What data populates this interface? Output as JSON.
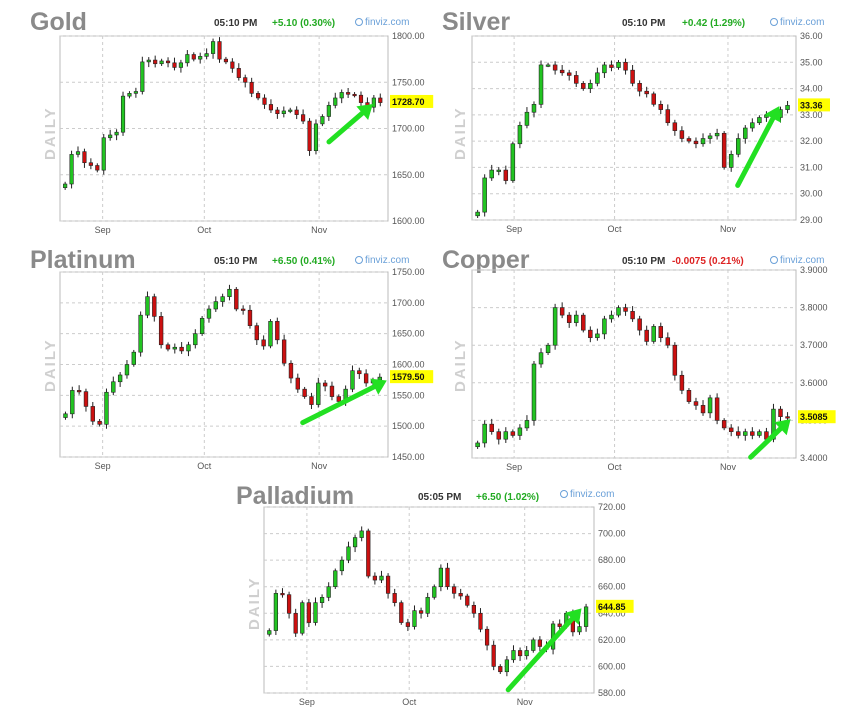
{
  "charts": [
    {
      "id": "gold",
      "name": "Gold",
      "timeframe": "DAILY",
      "time": "05:10 PM",
      "change": "+5.10 (0.30%)",
      "change_color": "#22aa22",
      "brand": "finviz.com",
      "last_price": "1728.70",
      "months": [
        "Sep",
        "Oct",
        "Nov"
      ],
      "yticks": [
        "1800.00",
        "1750.00",
        "1700.00",
        "1650.00",
        "1600.00"
      ],
      "ylim": [
        1600,
        1800
      ],
      "close": [
        1640,
        1672,
        1675,
        1663,
        1660,
        1655,
        1690,
        1693,
        1696,
        1735,
        1738,
        1740,
        1772,
        1774,
        1770,
        1773,
        1771,
        1766,
        1771,
        1780,
        1775,
        1778,
        1781,
        1794,
        1775,
        1772,
        1765,
        1755,
        1750,
        1738,
        1733,
        1726,
        1720,
        1716,
        1719,
        1720,
        1715,
        1708,
        1676,
        1705,
        1713,
        1725,
        1733,
        1739,
        1737,
        1736,
        1728,
        1723,
        1733,
        1728
      ],
      "arrow": [
        0.82,
        0.94
      ]
    },
    {
      "id": "silver",
      "name": "Silver",
      "timeframe": "DAILY",
      "time": "05:10 PM",
      "change": "+0.42 (1.29%)",
      "change_color": "#22aa22",
      "brand": "finviz.com",
      "last_price": "33.36",
      "months": [
        "Sep",
        "Oct",
        "Nov"
      ],
      "yticks": [
        "36.00",
        "35.00",
        "34.00",
        "33.00",
        "32.00",
        "31.00",
        "30.00",
        "29.00"
      ],
      "ylim": [
        29,
        36
      ],
      "close": [
        29.3,
        30.6,
        30.9,
        30.9,
        30.5,
        31.9,
        32.6,
        33.1,
        33.4,
        34.9,
        34.9,
        34.7,
        34.6,
        34.5,
        34.2,
        34.0,
        34.2,
        34.6,
        34.9,
        34.8,
        35.0,
        34.7,
        34.2,
        33.9,
        33.8,
        33.4,
        33.2,
        32.7,
        32.4,
        32.1,
        32.0,
        31.9,
        32.1,
        32.2,
        32.3,
        31.0,
        31.5,
        32.1,
        32.5,
        32.7,
        32.9,
        33.0,
        32.9,
        33.2,
        33.36
      ],
      "arrow": [
        0.82,
        0.94
      ]
    },
    {
      "id": "platinum",
      "name": "Platinum",
      "timeframe": "DAILY",
      "time": "05:10 PM",
      "change": "+6.50 (0.41%)",
      "change_color": "#22aa22",
      "brand": "finviz.com",
      "last_price": "1579.50",
      "months": [
        "Sep",
        "Oct",
        "Nov"
      ],
      "yticks": [
        "1750.00",
        "1700.00",
        "1650.00",
        "1600.00",
        "1550.00",
        "1500.00",
        "1450.00"
      ],
      "ylim": [
        1450,
        1750
      ],
      "close": [
        1520,
        1558,
        1556,
        1532,
        1508,
        1503,
        1555,
        1572,
        1583,
        1600,
        1620,
        1680,
        1710,
        1678,
        1632,
        1625,
        1628,
        1622,
        1632,
        1650,
        1675,
        1690,
        1702,
        1710,
        1722,
        1690,
        1688,
        1663,
        1640,
        1630,
        1670,
        1640,
        1602,
        1578,
        1560,
        1548,
        1535,
        1570,
        1565,
        1548,
        1540,
        1560,
        1590,
        1585,
        1570,
        1575,
        1579.5
      ],
      "arrow": [
        0.74,
        0.98
      ]
    },
    {
      "id": "copper",
      "name": "Copper",
      "timeframe": "DAILY",
      "time": "05:10 PM",
      "change": "-0.0075 (0.21%)",
      "change_color": "#dd2222",
      "brand": "finviz.com",
      "last_price": "3.5085",
      "months": [
        "Sep",
        "Oct",
        "Nov"
      ],
      "yticks": [
        "3.9000",
        "3.8000",
        "3.7000",
        "3.6000",
        "3.5000",
        "3.4000"
      ],
      "ylim": [
        3.4,
        3.9
      ],
      "close": [
        3.44,
        3.49,
        3.47,
        3.45,
        3.47,
        3.46,
        3.48,
        3.5,
        3.65,
        3.68,
        3.7,
        3.8,
        3.78,
        3.76,
        3.78,
        3.74,
        3.72,
        3.73,
        3.77,
        3.78,
        3.8,
        3.79,
        3.77,
        3.74,
        3.71,
        3.75,
        3.72,
        3.7,
        3.62,
        3.58,
        3.55,
        3.54,
        3.52,
        3.56,
        3.5,
        3.48,
        3.47,
        3.46,
        3.47,
        3.46,
        3.47,
        3.45,
        3.53,
        3.51,
        3.5085
      ],
      "arrow": [
        0.86,
        0.97
      ]
    },
    {
      "id": "palladium",
      "name": "Palladium",
      "timeframe": "DAILY",
      "time": "05:05 PM",
      "change": "+6.50 (1.02%)",
      "change_color": "#22aa22",
      "brand": "finviz.com",
      "last_price": "644.85",
      "months": [
        "Sep",
        "Oct",
        "Nov"
      ],
      "yticks": [
        "720.00",
        "700.00",
        "680.00",
        "660.00",
        "640.00",
        "620.00",
        "600.00",
        "580.00"
      ],
      "ylim": [
        580,
        720
      ],
      "close": [
        627,
        655,
        654,
        640,
        625,
        648,
        633,
        648,
        652,
        660,
        672,
        680,
        690,
        697,
        702,
        668,
        665,
        668,
        655,
        648,
        633,
        630,
        642,
        640,
        652,
        660,
        674,
        660,
        655,
        653,
        646,
        640,
        628,
        616,
        600,
        596,
        605,
        612,
        608,
        612,
        620,
        615,
        613,
        632,
        630,
        640,
        626,
        630,
        644.85
      ],
      "arrow": [
        0.74,
        0.95
      ]
    }
  ]
}
